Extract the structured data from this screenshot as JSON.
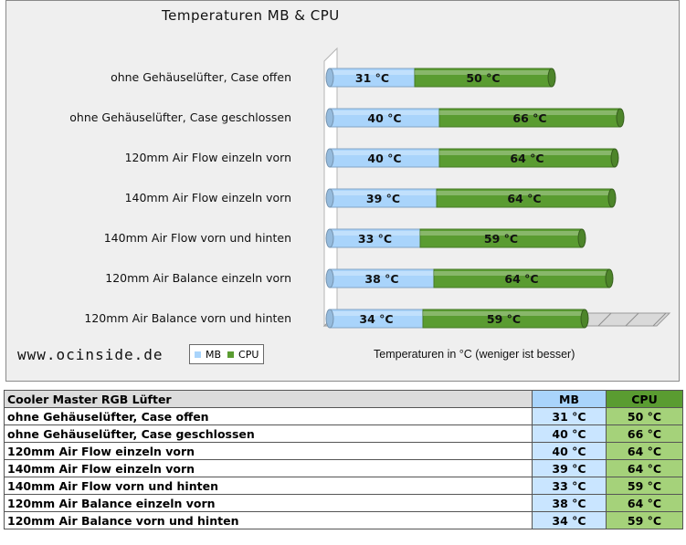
{
  "chart_data": {
    "type": "bar",
    "orientation": "horizontal",
    "stacked": true,
    "title": "Temperaturen MB & CPU",
    "xlabel": "Temperaturen in °C (weniger ist besser)",
    "unit": "°C",
    "categories": [
      "ohne Gehäuselüfter, Case offen",
      "ohne Gehäuselüfter, Case geschlossen",
      "120mm Air Flow einzeln vorn",
      "140mm Air Flow einzeln vorn",
      "140mm Air Flow vorn und hinten",
      "120mm Air Balance einzeln vorn",
      "120mm Air Balance vorn und hinten"
    ],
    "series": [
      {
        "name": "MB",
        "values": [
          31,
          40,
          40,
          39,
          33,
          38,
          34
        ],
        "color": "#a9d4fb"
      },
      {
        "name": "CPU",
        "values": [
          50,
          66,
          64,
          64,
          59,
          64,
          59
        ],
        "color": "#5a9c31"
      }
    ],
    "xlim": [
      0,
      120
    ],
    "grid": true,
    "legend": "bottom-left"
  },
  "site": "www.ocinside.de",
  "table": {
    "header": {
      "label": "Cooler Master RGB Lüfter",
      "mb": "MB",
      "cpu": "CPU"
    },
    "rows": [
      {
        "label": "ohne Gehäuselüfter, Case offen",
        "mb": "31 °C",
        "cpu": "50 °C"
      },
      {
        "label": "ohne Gehäuselüfter, Case geschlossen",
        "mb": "40 °C",
        "cpu": "66 °C"
      },
      {
        "label": "120mm Air Flow einzeln vorn",
        "mb": "40 °C",
        "cpu": "64 °C"
      },
      {
        "label": "140mm Air Flow einzeln vorn",
        "mb": "39 °C",
        "cpu": "64 °C"
      },
      {
        "label": "140mm Air Flow vorn und hinten",
        "mb": "33 °C",
        "cpu": "59 °C"
      },
      {
        "label": "120mm Air Balance einzeln vorn",
        "mb": "38 °C",
        "cpu": "64 °C"
      },
      {
        "label": "120mm Air Balance vorn und hinten",
        "mb": "34 °C",
        "cpu": "59 °C"
      }
    ]
  }
}
